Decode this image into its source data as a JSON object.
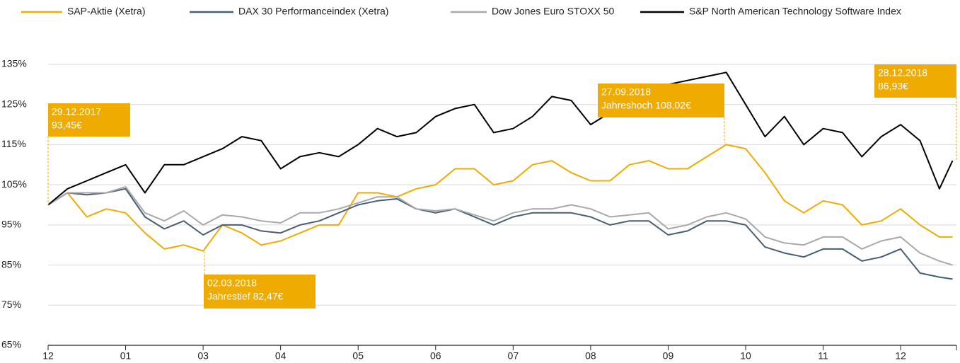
{
  "chart_data": {
    "type": "line",
    "x": [
      0,
      0.25,
      0.5,
      0.75,
      1,
      1.25,
      1.5,
      1.75,
      2,
      2.25,
      2.5,
      2.75,
      3,
      3.25,
      3.5,
      3.75,
      4,
      4.25,
      4.5,
      4.75,
      5,
      5.25,
      5.5,
      5.75,
      6,
      6.25,
      6.5,
      6.75,
      7,
      7.25,
      7.5,
      7.75,
      8,
      8.25,
      8.5,
      8.75,
      9,
      9.25,
      9.5,
      9.75,
      10,
      10.25,
      10.5,
      10.75,
      11,
      11.25,
      11.5,
      11.67
    ],
    "xlim": [
      0,
      11.72
    ],
    "xticks": [
      {
        "value": 0,
        "label": "12"
      },
      {
        "value": 1,
        "label": "01"
      },
      {
        "value": 2,
        "label": "03"
      },
      {
        "value": 3,
        "label": "04"
      },
      {
        "value": 4,
        "label": "05"
      },
      {
        "value": 5,
        "label": "06"
      },
      {
        "value": 6,
        "label": "07"
      },
      {
        "value": 7,
        "label": "08"
      },
      {
        "value": 8,
        "label": "09"
      },
      {
        "value": 9,
        "label": "10"
      },
      {
        "value": 10,
        "label": "11"
      },
      {
        "value": 11,
        "label": "12"
      }
    ],
    "ylim": [
      65,
      135
    ],
    "yticks": [
      {
        "value": 65,
        "label": "65%"
      },
      {
        "value": 75,
        "label": "75%"
      },
      {
        "value": 85,
        "label": "85%"
      },
      {
        "value": 95,
        "label": "95%"
      },
      {
        "value": 105,
        "label": "105%"
      },
      {
        "value": 115,
        "label": "115%"
      },
      {
        "value": 125,
        "label": "125%"
      },
      {
        "value": 135,
        "label": "135%"
      }
    ],
    "grid": true,
    "series": [
      {
        "name": "SAP-Aktie (Xetra)",
        "color": "#f0ab00",
        "values": [
          100,
          103,
          97,
          99,
          98,
          93,
          89,
          90,
          88.5,
          95,
          93,
          90,
          91,
          93,
          95,
          95,
          103,
          103,
          102,
          104,
          105,
          109,
          109,
          105,
          106,
          110,
          111,
          108,
          106,
          106,
          110,
          111,
          109,
          109,
          112,
          115,
          114,
          108,
          101,
          98,
          101,
          100,
          95,
          96,
          99,
          95,
          92,
          92
        ]
      },
      {
        "name": "DAX 30 Performanceindex (Xetra)",
        "color": "#475e75",
        "values": [
          100,
          103,
          102.5,
          103,
          104,
          97,
          94,
          96,
          92.5,
          95,
          95,
          93.5,
          93,
          95,
          96,
          98,
          100,
          101,
          101.5,
          99,
          98,
          99,
          97,
          95,
          97,
          98,
          98,
          98,
          97,
          95,
          96,
          96,
          92.5,
          93.5,
          96,
          96,
          95,
          89.5,
          88,
          87,
          89,
          89,
          86,
          87,
          89,
          83,
          82,
          81.5
        ]
      },
      {
        "name": "Dow Jones Euro STOXX 50",
        "color": "#a9a9a9",
        "values": [
          100,
          103,
          103,
          103,
          104.5,
          98,
          96,
          98.5,
          95,
          97.5,
          97,
          96,
          95.5,
          98,
          98,
          99,
          100.5,
          102,
          102,
          99,
          98.5,
          99,
          97.5,
          96,
          98,
          99,
          99,
          100,
          99,
          97,
          97.5,
          98,
          94,
          95,
          97,
          98,
          96.5,
          92,
          90.5,
          90,
          92,
          92,
          89,
          91,
          92,
          88,
          86,
          85
        ]
      },
      {
        "name": "S&P North American Technology Software Index",
        "color": "#000000",
        "values": [
          100,
          104,
          106,
          108,
          110,
          103,
          110,
          110,
          112,
          114,
          117,
          116,
          109,
          112,
          113,
          112,
          115,
          119,
          117,
          118,
          122,
          124,
          125,
          118,
          119,
          122,
          127,
          126,
          120,
          123,
          126,
          128,
          130,
          131,
          132,
          133,
          125,
          117,
          122,
          115,
          119,
          118,
          112,
          117,
          120,
          116,
          104,
          111
        ]
      }
    ],
    "annotations": [
      {
        "lines": [
          "29.12.2017",
          "93,45€"
        ]
      },
      {
        "lines": [
          "02.03.2018",
          "Jahrestief 82,47€"
        ]
      },
      {
        "lines": [
          "27.09.2018",
          "Jahreshoch 108,02€"
        ]
      },
      {
        "lines": [
          "28.12.2018",
          "86,93€"
        ]
      }
    ],
    "annotation_color": "#f0ab00"
  }
}
